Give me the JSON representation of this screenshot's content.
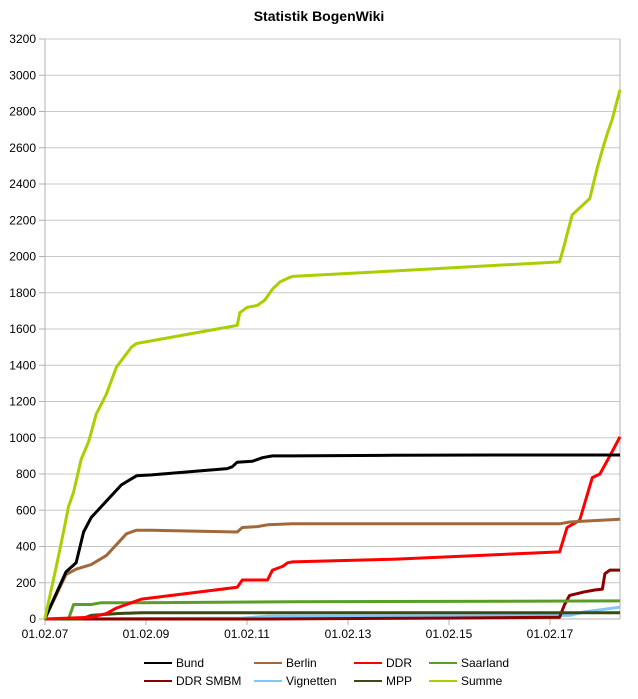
{
  "chart_data": {
    "type": "line",
    "title": "Statistik BogenWiki",
    "xlabel": "",
    "ylabel": "",
    "ylim": [
      0,
      3200
    ],
    "yticks": [
      0,
      200,
      400,
      600,
      800,
      1000,
      1200,
      1400,
      1600,
      1800,
      2000,
      2200,
      2400,
      2600,
      2800,
      3000,
      3200
    ],
    "xtick_labels": [
      "01.02.07",
      "01.02.09",
      "01.02.11",
      "01.02.13",
      "01.02.15",
      "01.02.17"
    ],
    "x_range_years": [
      2007.083,
      2018.5
    ],
    "grid": true,
    "legend_position": "bottom",
    "series": [
      {
        "name": "Bund",
        "color": "#000000",
        "x": [
          2007.08,
          2007.5,
          2007.7,
          2007.85,
          2008.0,
          2008.3,
          2008.6,
          2008.9,
          2009.2,
          2010.7,
          2010.8,
          2010.9,
          2011.2,
          2011.4,
          2011.6,
          2012.0,
          2014.0,
          2016.0,
          2018.5
        ],
        "y": [
          0,
          260,
          310,
          480,
          560,
          650,
          740,
          790,
          795,
          830,
          840,
          865,
          870,
          890,
          900,
          900,
          903,
          905,
          905
        ]
      },
      {
        "name": "Berlin",
        "color": "#a0683c",
        "x": [
          2007.08,
          2007.5,
          2007.7,
          2008.0,
          2008.3,
          2008.5,
          2008.7,
          2008.9,
          2009.2,
          2010.9,
          2011.0,
          2011.3,
          2011.5,
          2012.0,
          2014.0,
          2017.3,
          2017.5,
          2017.8,
          2018.5
        ],
        "y": [
          0,
          245,
          275,
          300,
          350,
          410,
          470,
          490,
          490,
          480,
          505,
          510,
          520,
          525,
          525,
          525,
          535,
          540,
          550
        ]
      },
      {
        "name": "DDR",
        "color": "#ff0000",
        "x": [
          2007.08,
          2008.0,
          2008.3,
          2008.5,
          2008.8,
          2009.0,
          2010.9,
          2011.0,
          2011.5,
          2011.6,
          2011.8,
          2011.9,
          2012.0,
          2014.0,
          2017.3,
          2017.45,
          2017.7,
          2017.95,
          2018.1,
          2018.3,
          2018.5
        ],
        "y": [
          0,
          10,
          30,
          60,
          90,
          110,
          175,
          215,
          215,
          270,
          290,
          310,
          315,
          330,
          370,
          505,
          545,
          780,
          800,
          900,
          1005
        ]
      },
      {
        "name": "Saarland",
        "color": "#5a9e28",
        "x": [
          2007.08,
          2007.55,
          2007.65,
          2008.0,
          2008.2,
          2009.0,
          2012.0,
          2018.5
        ],
        "y": [
          0,
          0,
          80,
          80,
          90,
          90,
          95,
          100
        ]
      },
      {
        "name": "DDR SMBM",
        "color": "#8b0000",
        "x": [
          2007.08,
          2011.5,
          2015.0,
          2017.3,
          2017.4,
          2017.5,
          2017.8,
          2018.0,
          2018.15,
          2018.2,
          2018.3,
          2018.5
        ],
        "y": [
          0,
          0,
          5,
          10,
          80,
          130,
          150,
          160,
          165,
          250,
          270,
          270
        ]
      },
      {
        "name": "Vignetten",
        "color": "#7ec8f8",
        "x": [
          2007.08,
          2011.0,
          2011.5,
          2017.5,
          2017.8,
          2018.5
        ],
        "y": [
          0,
          5,
          15,
          20,
          40,
          65
        ]
      },
      {
        "name": "MPP",
        "color": "#3a4a10",
        "x": [
          2007.08,
          2007.8,
          2008.0,
          2008.5,
          2009.0,
          2018.5
        ],
        "y": [
          0,
          0,
          20,
          30,
          35,
          35
        ]
      },
      {
        "name": "Summe",
        "color": "#a8d000",
        "x": [
          2007.08,
          2007.3,
          2007.45,
          2007.55,
          2007.65,
          2007.8,
          2007.95,
          2008.1,
          2008.3,
          2008.5,
          2008.8,
          2008.9,
          2010.9,
          2010.95,
          2011.1,
          2011.3,
          2011.45,
          2011.6,
          2011.75,
          2011.9,
          2012.0,
          2014.0,
          2017.3,
          2017.4,
          2017.55,
          2017.9,
          2018.05,
          2018.15,
          2018.25,
          2018.35,
          2018.5
        ],
        "y": [
          0,
          280,
          480,
          620,
          700,
          880,
          980,
          1130,
          1240,
          1390,
          1500,
          1520,
          1620,
          1690,
          1720,
          1730,
          1760,
          1820,
          1860,
          1880,
          1890,
          1920,
          1970,
          2070,
          2230,
          2320,
          2490,
          2590,
          2680,
          2760,
          2920
        ]
      }
    ]
  },
  "legend": {
    "items": [
      {
        "label": "Bund",
        "color": "#000000"
      },
      {
        "label": "Berlin",
        "color": "#a0683c"
      },
      {
        "label": "DDR",
        "color": "#ff0000"
      },
      {
        "label": "Saarland",
        "color": "#5a9e28"
      },
      {
        "label": "DDR SMBM",
        "color": "#8b0000"
      },
      {
        "label": "Vignetten",
        "color": "#7ec8f8"
      },
      {
        "label": "MPP",
        "color": "#3a4a10"
      },
      {
        "label": "Summe",
        "color": "#a8d000"
      }
    ]
  }
}
